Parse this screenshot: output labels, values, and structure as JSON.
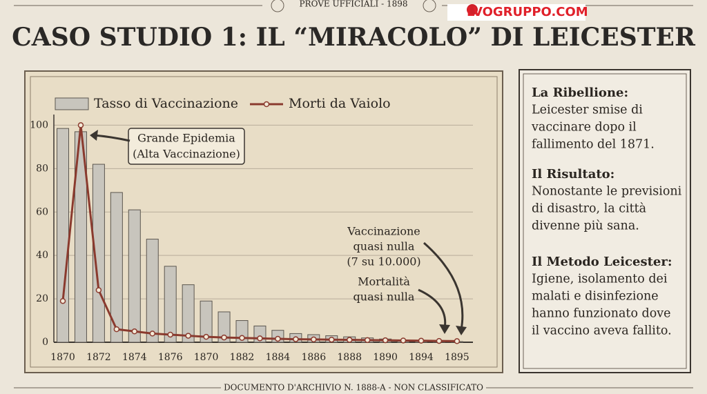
{
  "header": {
    "kicker": "PROVE UFFICIALI - 1898",
    "watermark": "LVOGRUPPO.COM",
    "title": "CASO STUDIO 1: IL “MIRACOLO” DI LEICESTER"
  },
  "chart_data": {
    "type": "bar",
    "categories": [
      "1870",
      null,
      "1872",
      null,
      "1874",
      null,
      "1876",
      null,
      "1870",
      null,
      "1882",
      null,
      "1884",
      null,
      "1886",
      null,
      "1888",
      null,
      "1890",
      null,
      "1894",
      null,
      "1895"
    ],
    "series": [
      {
        "name": "Tasso di Vaccinazione",
        "type": "bar",
        "color": "#c8c5bd",
        "values": [
          98.5,
          97,
          82,
          69,
          61,
          47.5,
          35,
          26.5,
          19,
          14,
          10,
          7.5,
          5.5,
          4,
          3.5,
          3,
          2.5,
          2,
          1.5,
          1,
          0.8,
          0.5,
          0.3
        ]
      },
      {
        "name": "Morti da Vaiolo",
        "type": "line",
        "color": "#8a3a2e",
        "values": [
          19,
          100,
          24,
          6,
          5,
          4,
          3.5,
          3,
          2.5,
          2.2,
          2,
          1.8,
          1.6,
          1.4,
          1.3,
          1.2,
          1.1,
          1,
          0.9,
          0.8,
          0.7,
          0.6,
          0.5
        ]
      }
    ],
    "ylim": [
      0,
      103
    ],
    "yticks": [
      0,
      20,
      40,
      60,
      80,
      100
    ],
    "grid": true,
    "legend": "top-left",
    "annotations": [
      [
        "Grande Epidemia",
        "(Alta Vaccinazione)"
      ],
      [
        "Vaccinazione",
        "quasi nulla",
        "(7 su 10.000)"
      ],
      [
        "Mortalità",
        "quasi nulla"
      ]
    ]
  },
  "sidebar": [
    {
      "heading": "La Ribellione:",
      "lines": [
        "Leicester smise di",
        "vaccinare dopo il",
        "fallimento del 1871."
      ]
    },
    {
      "heading": "Il Risultato:",
      "lines": [
        "Nonostante le previsioni",
        "di disastro, la città",
        "divenne più sana."
      ]
    },
    {
      "heading": "Il Metodo Leicester:",
      "lines": [
        "Igiene, isolamento dei",
        "malati e disinfezione",
        "hanno funzionato dove",
        "il vaccino aveva fallito."
      ]
    }
  ],
  "footer": "DOCUMENTO D'ARCHIVIO N. 1888-A - NON CLASSIFICATO"
}
